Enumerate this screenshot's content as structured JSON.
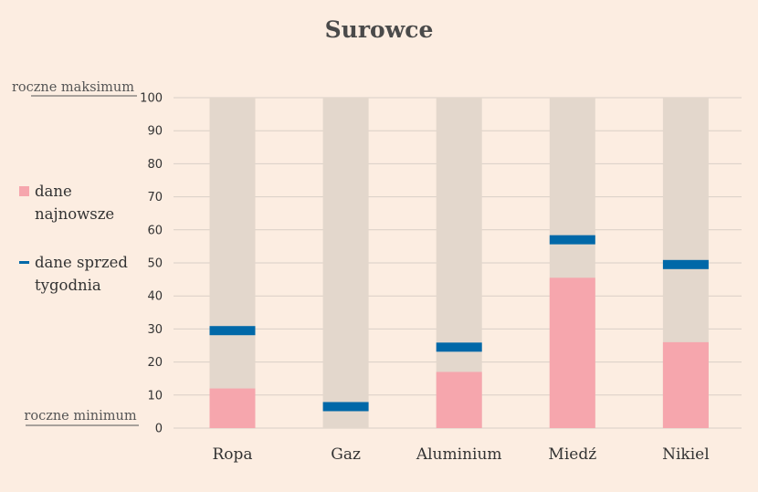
{
  "chart_data": {
    "type": "bar",
    "title": "Surowce",
    "categories": [
      "Ropa",
      "Gaz",
      "Aluminium",
      "Miedź",
      "Nikiel"
    ],
    "series": [
      {
        "name": "dane najnowsze",
        "values": [
          12,
          0,
          17,
          45.5,
          26
        ]
      },
      {
        "name": "dane sprzed tygodnia",
        "values": [
          29.5,
          6.5,
          24.5,
          57,
          49.5
        ]
      }
    ],
    "background_range": 100,
    "ylim": [
      0,
      100
    ],
    "yticks": [
      0,
      10,
      20,
      30,
      40,
      50,
      60,
      70,
      80,
      90,
      100
    ],
    "annotations": {
      "top": "roczne maksimum",
      "bottom": "roczne minimum"
    },
    "legend": {
      "position": "left",
      "items": [
        {
          "label_lines": [
            "dane",
            "najnowsze"
          ],
          "marker": "square",
          "color": "#f6a6ad"
        },
        {
          "label_lines": [
            "dane sprzed",
            "tygodnia"
          ],
          "marker": "dash",
          "color": "#0068a8"
        }
      ]
    },
    "grid": true,
    "colors": {
      "background_bar": "#e3d7cc",
      "latest": "#f6a6ad",
      "week_ago": "#0068a8",
      "grid": "#d9cfc6"
    }
  }
}
